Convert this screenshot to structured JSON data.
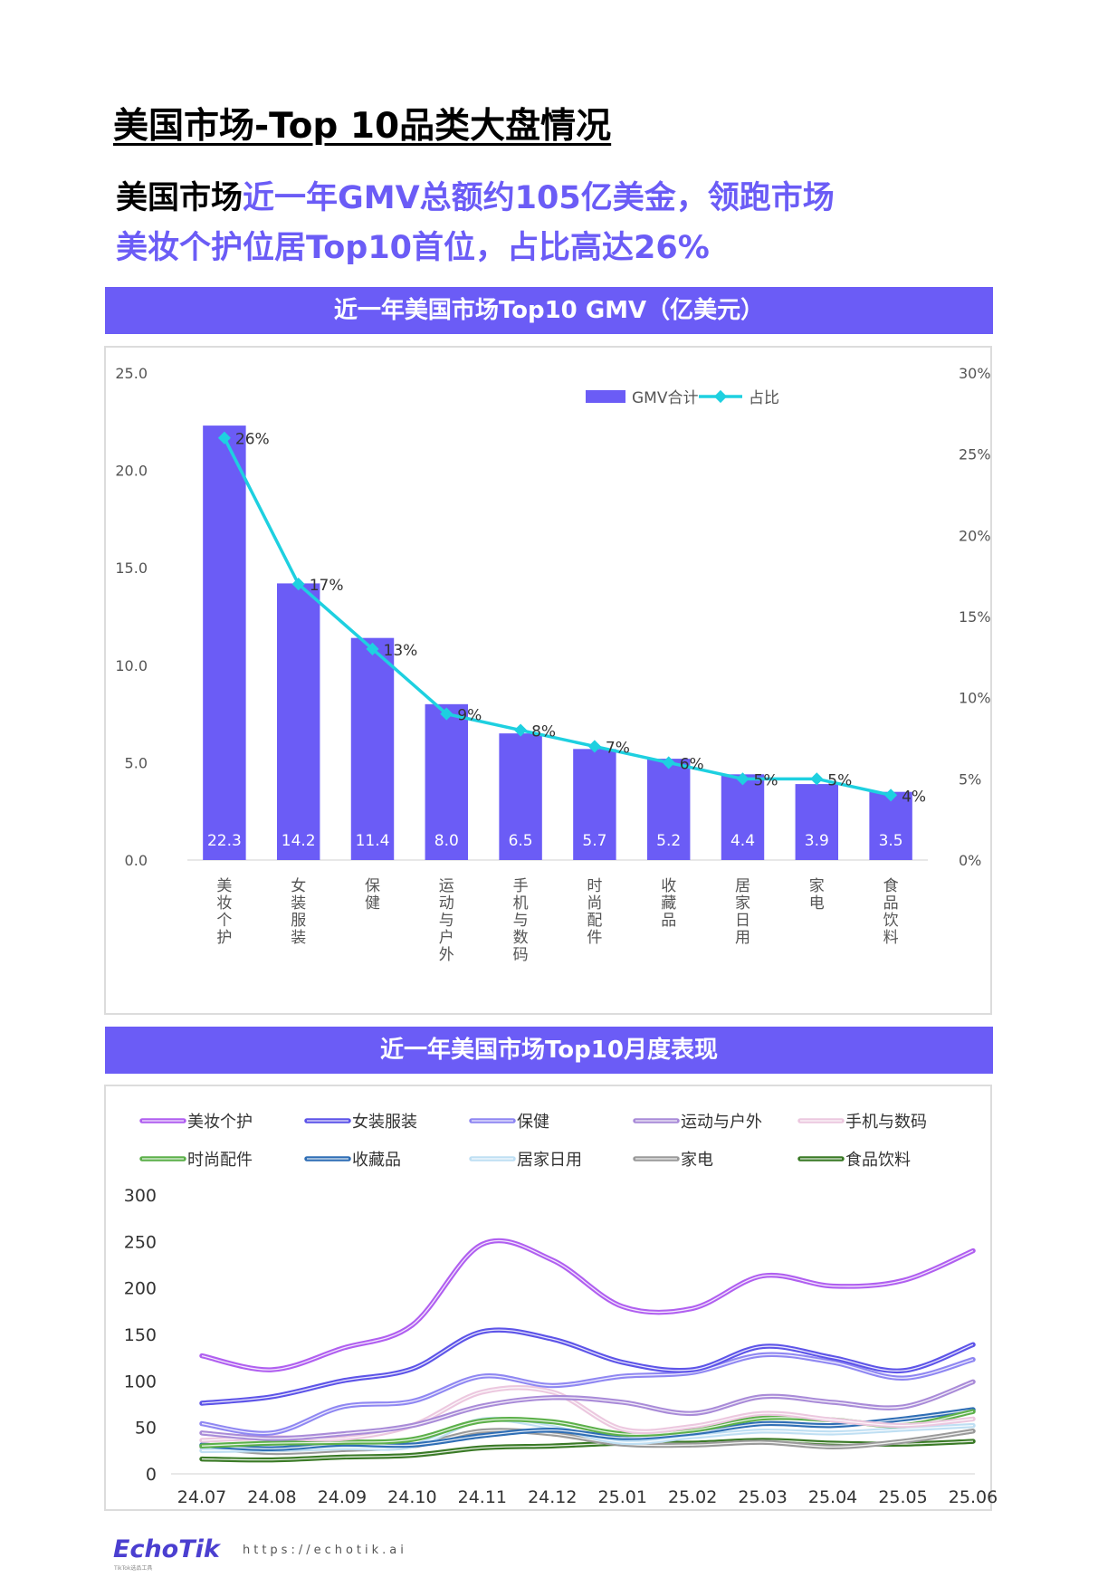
{
  "page": {
    "title": "美国市场-Top 10品类大盘情况",
    "headline": [
      {
        "text": "美国市场",
        "tone": "k"
      },
      {
        "text": "近一年GMV总额约105亿美金，领跑市场",
        "tone": "h"
      },
      {
        "text": "美妆个护位居Top10首位，占比高达26%",
        "tone": "h"
      }
    ],
    "section1_title": "近一年美国市场Top10 GMV（亿美元）",
    "section2_title": "近一年美国市场Top10月度表现"
  },
  "footer": {
    "logo": "EchoTik",
    "logo_sub": "TikTok选品工具",
    "url": "https://echotik.ai"
  },
  "colors": {
    "accent": "#6b5cf6",
    "bar": "#6b5cf6",
    "share_line": "#1ed0e0"
  },
  "chart_data": [
    {
      "type": "bar",
      "categories": [
        "美妆个护",
        "女装服装",
        "保健",
        "运动与户外",
        "手机与数码",
        "时尚配件",
        "收藏品",
        "居家日用",
        "家电",
        "食品饮料"
      ],
      "series": [
        {
          "name": "GMV合计",
          "type": "bar",
          "axis": "left",
          "values": [
            22.3,
            14.2,
            11.4,
            8.0,
            6.5,
            5.7,
            5.2,
            4.4,
            3.9,
            3.5
          ],
          "labels": [
            "22.3",
            "14.2",
            "11.4",
            "8.0",
            "6.5",
            "5.7",
            "5.2",
            "4.4",
            "3.9",
            "3.5"
          ]
        },
        {
          "name": "占比",
          "type": "line",
          "axis": "right",
          "values": [
            26,
            17,
            13,
            9,
            8,
            7,
            6,
            5,
            5,
            4
          ],
          "labels": [
            "26%",
            "17%",
            "13%",
            "9%",
            "8%",
            "7%",
            "6%",
            "5%",
            "5%",
            "4%"
          ]
        }
      ],
      "y_left": {
        "min": 0,
        "max": 25,
        "ticks": [
          "0.0",
          "5.0",
          "10.0",
          "15.0",
          "20.0",
          "25.0"
        ]
      },
      "y_right": {
        "min": 0,
        "max": 30,
        "ticks": [
          "0%",
          "5%",
          "10%",
          "15%",
          "20%",
          "25%",
          "30%"
        ]
      },
      "legend": "top-right",
      "grid": false
    },
    {
      "type": "line",
      "x": [
        "24.07",
        "24.08",
        "24.09",
        "24.10",
        "24.11",
        "24.12",
        "25.01",
        "25.02",
        "25.03",
        "25.04",
        "25.05",
        "25.06"
      ],
      "series": [
        {
          "name": "美妆个护",
          "color": "#b05ff0",
          "values": [
            127,
            112,
            135,
            160,
            247,
            230,
            180,
            178,
            213,
            202,
            208,
            240
          ]
        },
        {
          "name": "女装服装",
          "color": "#5d54e8",
          "values": [
            76,
            83,
            100,
            113,
            153,
            145,
            120,
            112,
            137,
            125,
            111,
            139
          ]
        },
        {
          "name": "保健",
          "color": "#8f87f2",
          "values": [
            54,
            44,
            72,
            78,
            105,
            95,
            105,
            109,
            128,
            120,
            103,
            123
          ]
        },
        {
          "name": "运动与户外",
          "color": "#a98bd8",
          "values": [
            44,
            38,
            43,
            52,
            73,
            82,
            77,
            65,
            83,
            77,
            72,
            99
          ]
        },
        {
          "name": "手机与数码",
          "color": "#ecc8df",
          "values": [
            36,
            39,
            38,
            52,
            88,
            88,
            48,
            51,
            65,
            58,
            52,
            59
          ]
        },
        {
          "name": "时尚配件",
          "color": "#5cb04a",
          "values": [
            30,
            33,
            34,
            37,
            57,
            56,
            43,
            47,
            60,
            58,
            52,
            67
          ]
        },
        {
          "name": "收藏品",
          "color": "#2f6eb5",
          "values": [
            31,
            27,
            32,
            31,
            41,
            47,
            39,
            44,
            54,
            52,
            59,
            69
          ]
        },
        {
          "name": "居家日用",
          "color": "#bfdff3",
          "values": [
            25,
            26,
            28,
            30,
            58,
            50,
            34,
            40,
            46,
            44,
            48,
            52
          ]
        },
        {
          "name": "家电",
          "color": "#9a9a9a",
          "values": [
            29,
            23,
            26,
            30,
            46,
            43,
            32,
            31,
            34,
            29,
            35,
            46
          ]
        },
        {
          "name": "食品饮料",
          "color": "#3a7a26",
          "values": [
            16,
            15,
            18,
            20,
            28,
            30,
            33,
            33,
            36,
            33,
            32,
            35
          ]
        }
      ],
      "y": {
        "min": 0,
        "max": 300,
        "ticks": [
          "0",
          "50",
          "100",
          "150",
          "200",
          "250",
          "300"
        ]
      },
      "legend": "top",
      "grid": false
    }
  ]
}
